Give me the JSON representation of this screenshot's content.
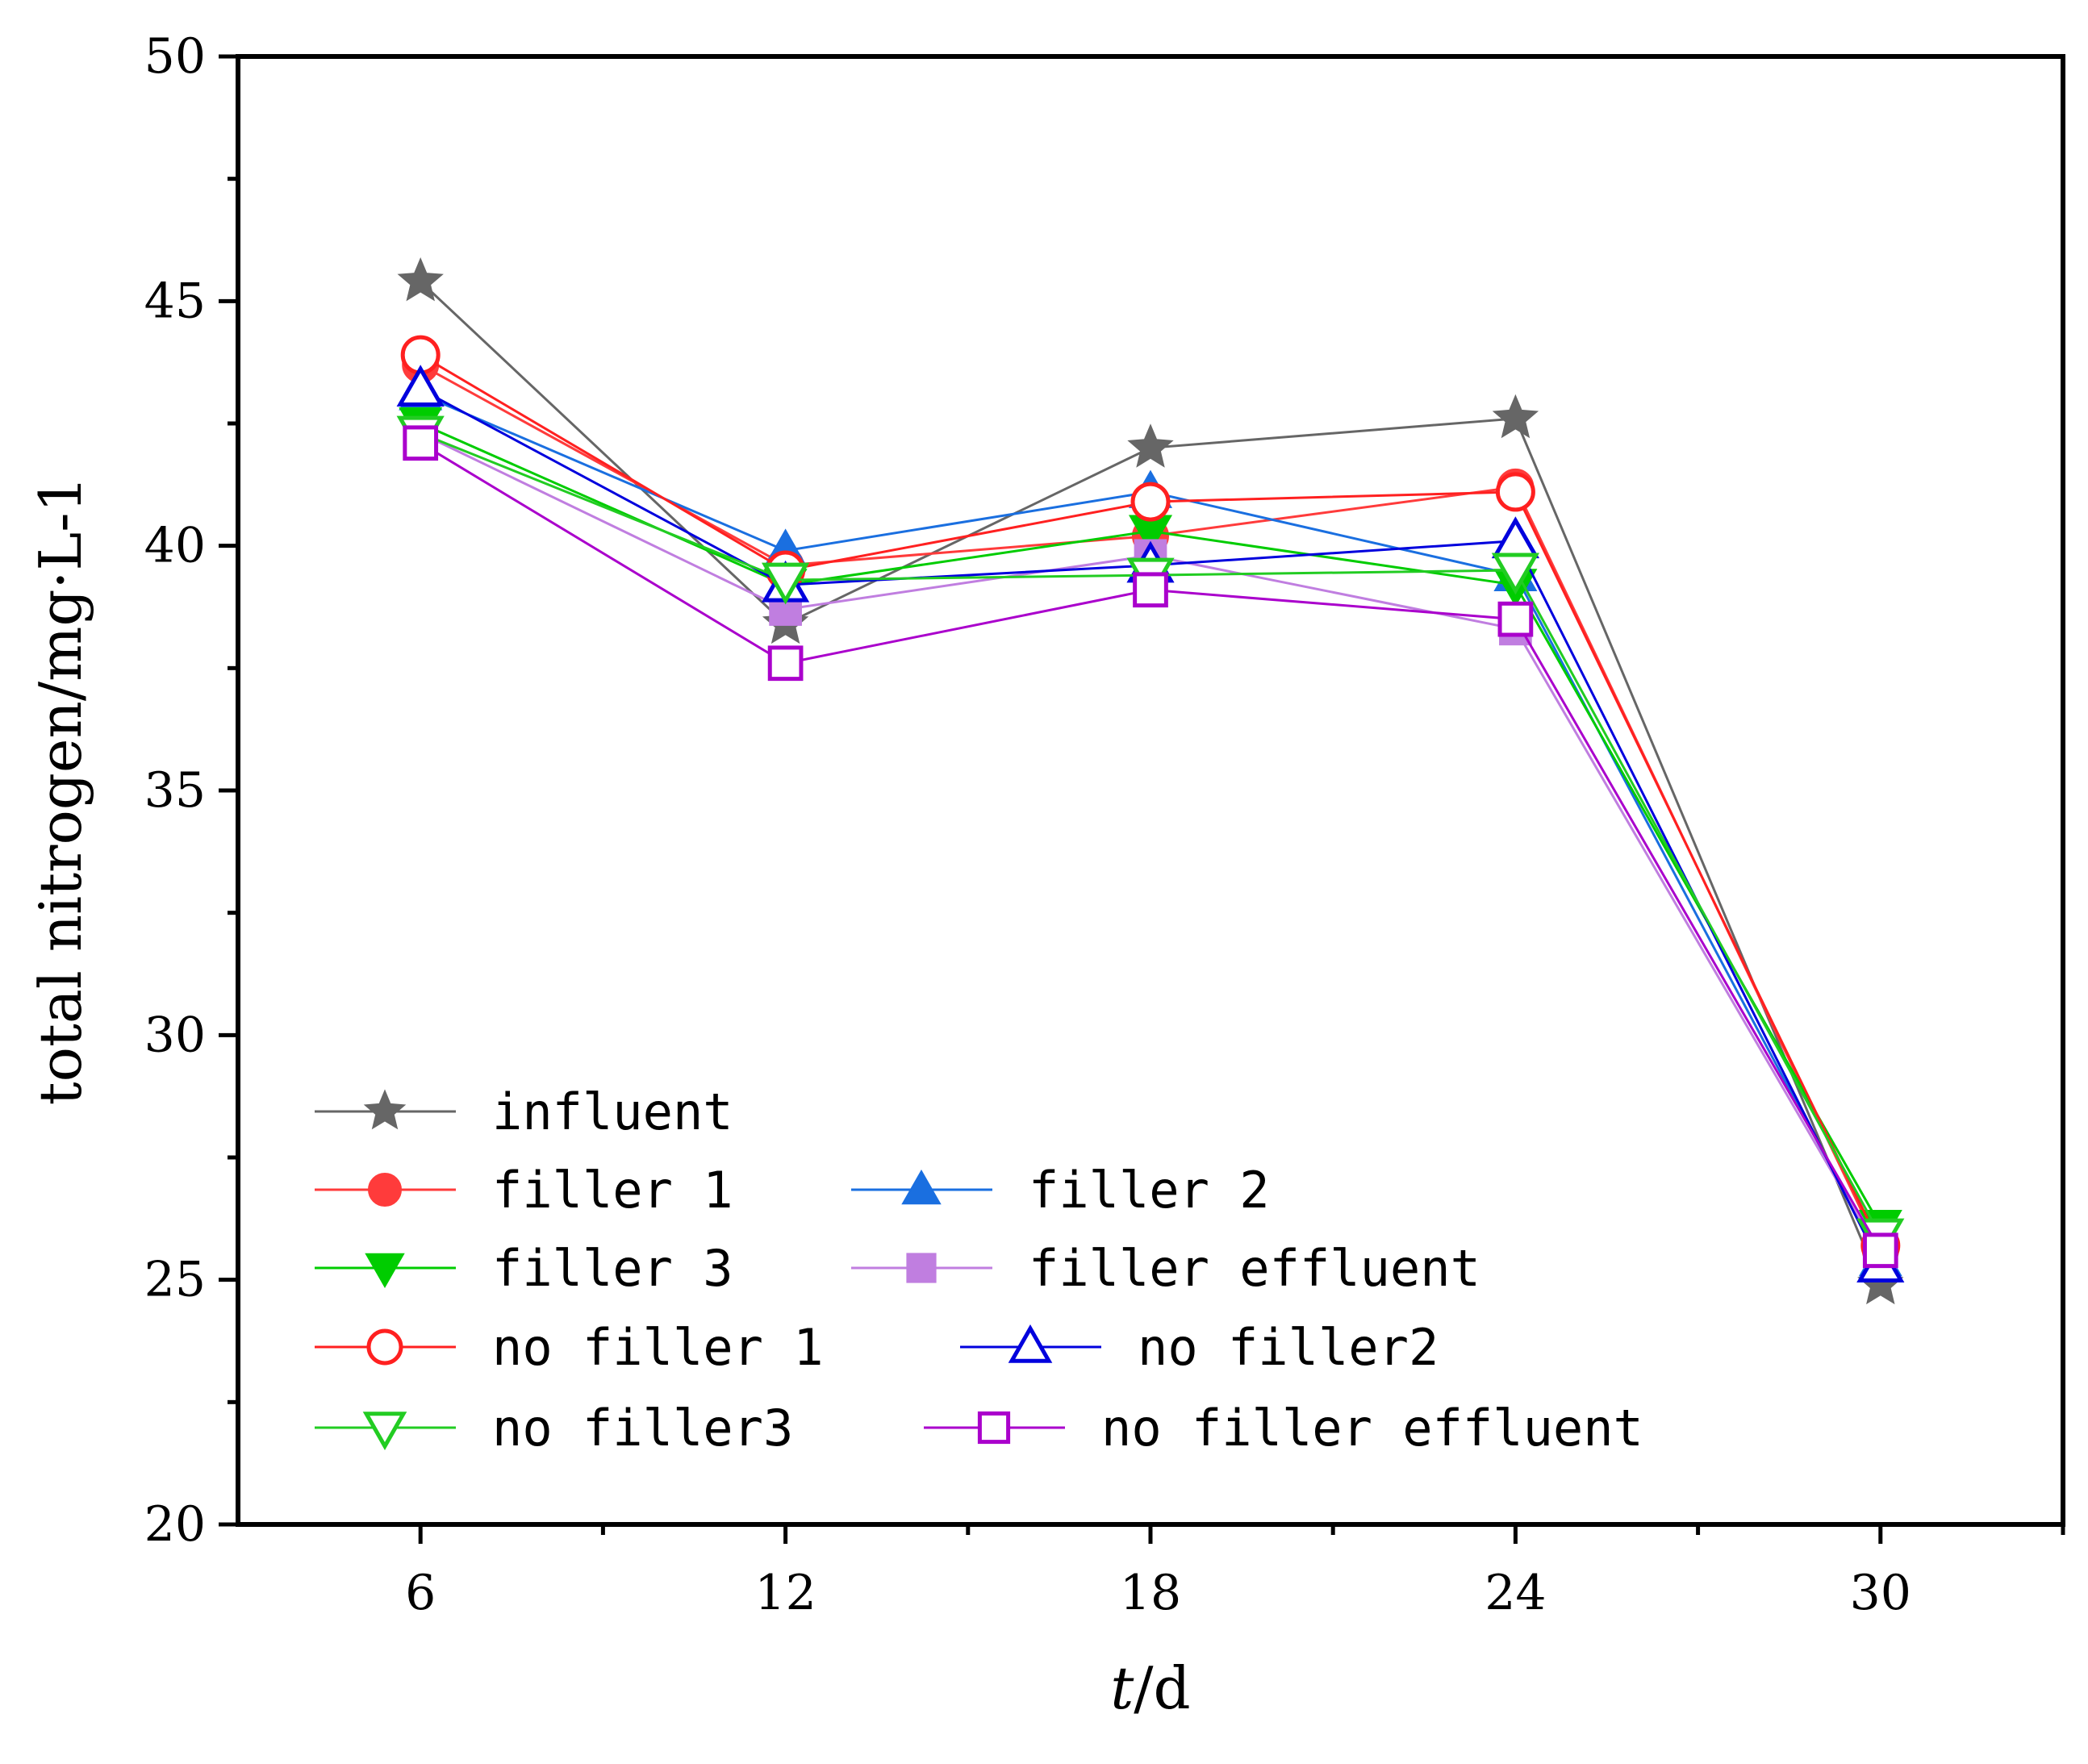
{
  "chart_data": {
    "type": "line",
    "title": "",
    "xlabel": {
      "italic": "t",
      "rest": "/d"
    },
    "ylabel": "total nitrogen/mg·L-1",
    "x": [
      6,
      12,
      18,
      24,
      30
    ],
    "xlim": [
      3,
      33
    ],
    "ylim": [
      20,
      50
    ],
    "xticks": [
      "6",
      "12",
      "18",
      "24",
      "30"
    ],
    "yticks": [
      "20",
      "25",
      "30",
      "35",
      "40",
      "45",
      "50"
    ],
    "grid": false,
    "legend_position": "bottom-left",
    "series": [
      {
        "name": "influent",
        "color": "#666666",
        "marker": "star",
        "filled": true,
        "values": [
          45.4,
          38.4,
          42.0,
          42.6,
          24.9
        ]
      },
      {
        "name": "filler 1",
        "color": "#ff3b3b",
        "marker": "circle",
        "filled": true,
        "values": [
          43.7,
          39.6,
          40.2,
          41.2,
          25.6
        ]
      },
      {
        "name": "filler 2",
        "color": "#1a6fe0",
        "marker": "triangle-up",
        "filled": true,
        "values": [
          43.1,
          39.9,
          41.1,
          39.4,
          25.4
        ]
      },
      {
        "name": "filler 3",
        "color": "#00cc00",
        "marker": "triangle-down",
        "filled": true,
        "values": [
          42.5,
          39.2,
          40.3,
          39.2,
          26.1
        ]
      },
      {
        "name": "filler effluent",
        "color": "#c07ee0",
        "marker": "square",
        "filled": true,
        "values": [
          42.3,
          38.7,
          39.8,
          38.3,
          25.5
        ]
      },
      {
        "name": "no filler 1",
        "color": "#ff2020",
        "marker": "circle",
        "filled": false,
        "values": [
          43.9,
          39.5,
          40.9,
          41.1,
          25.7
        ]
      },
      {
        "name": "no filler2",
        "color": "#0000dd",
        "marker": "triangle-up",
        "filled": false,
        "values": [
          43.2,
          39.2,
          39.6,
          40.1,
          25.3
        ]
      },
      {
        "name": "no filler3",
        "color": "#22cc22",
        "marker": "triangle-down",
        "filled": false,
        "values": [
          42.3,
          39.3,
          39.4,
          39.5,
          25.9
        ]
      },
      {
        "name": "no filler effluent",
        "color": "#aa00cc",
        "marker": "square",
        "filled": false,
        "values": [
          42.1,
          37.6,
          39.1,
          38.5,
          25.6
        ]
      }
    ]
  }
}
